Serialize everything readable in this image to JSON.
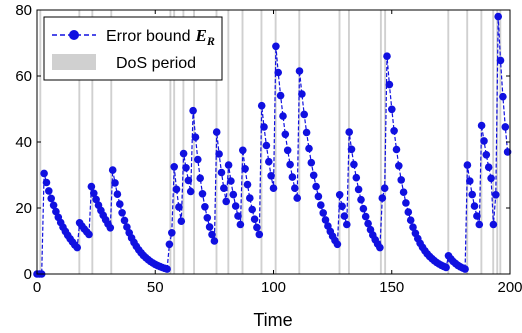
{
  "chart_data": {
    "type": "scatter",
    "title": "",
    "xlabel": "Time",
    "ylabel": "",
    "xlim": [
      0,
      200
    ],
    "ylim": [
      0,
      80
    ],
    "xticks": [
      "0",
      "50",
      "100",
      "150",
      "200"
    ],
    "yticks": [
      "0",
      "20",
      "40",
      "60",
      "80"
    ],
    "grid": false,
    "legend_position": "top-left",
    "legend": {
      "error_label": "Error bound",
      "error_symbol": "E",
      "error_subscript": "R",
      "dos_label": "DoS period"
    },
    "colors": {
      "series": "#1010e0",
      "dos": "#d0d0d0"
    },
    "dos_periods": [
      [
        1.0,
        1.8
      ],
      [
        17.5,
        18.3
      ],
      [
        23.0,
        23.8
      ],
      [
        31.0,
        31.8
      ],
      [
        56.0,
        56.8
      ],
      [
        57.6,
        58.4
      ],
      [
        61.5,
        62.3
      ],
      [
        66.0,
        66.8
      ],
      [
        75.5,
        76.3
      ],
      [
        80.5,
        81.3
      ],
      [
        86.5,
        87.3
      ],
      [
        94.5,
        95.3
      ],
      [
        100.5,
        101.3
      ],
      [
        110.5,
        111.3
      ],
      [
        127.5,
        128.3
      ],
      [
        131.5,
        132.3
      ],
      [
        145.0,
        145.8
      ],
      [
        146.8,
        147.6
      ],
      [
        173.5,
        174.3
      ],
      [
        181.5,
        182.3
      ],
      [
        187.5,
        188.3
      ],
      [
        192.5,
        193.3
      ],
      [
        194.2,
        195.0
      ],
      [
        195.5,
        196.3
      ]
    ],
    "segments": [
      {
        "x0": 0,
        "x1": 2,
        "y0": 0,
        "y1": 0
      },
      {
        "x0": 3,
        "x1": 17,
        "y0": 30.5,
        "y1": 8
      },
      {
        "x0": 18,
        "x1": 22,
        "y0": 15.5,
        "y1": 12
      },
      {
        "x0": 23,
        "x1": 31,
        "y0": 26.5,
        "y1": 14
      },
      {
        "x0": 32,
        "x1": 55,
        "y0": 31.5,
        "y1": 1.5
      },
      {
        "x0": 56,
        "x1": 57,
        "y0": 9,
        "y1": 12.5
      },
      {
        "x0": 58,
        "x1": 61,
        "y0": 32.5,
        "y1": 16
      },
      {
        "x0": 62,
        "x1": 65,
        "y0": 36.5,
        "y1": 25
      },
      {
        "x0": 66,
        "x1": 75,
        "y0": 49.5,
        "y1": 10
      },
      {
        "x0": 76,
        "x1": 80,
        "y0": 43,
        "y1": 22
      },
      {
        "x0": 81,
        "x1": 86,
        "y0": 33,
        "y1": 15
      },
      {
        "x0": 87,
        "x1": 94,
        "y0": 37.5,
        "y1": 12
      },
      {
        "x0": 95,
        "x1": 100,
        "y0": 51,
        "y1": 26
      },
      {
        "x0": 101,
        "x1": 110,
        "y0": 69,
        "y1": 23
      },
      {
        "x0": 111,
        "x1": 127,
        "y0": 61.5,
        "y1": 9
      },
      {
        "x0": 128,
        "x1": 131,
        "y0": 24,
        "y1": 15
      },
      {
        "x0": 132,
        "x1": 145,
        "y0": 43,
        "y1": 8
      },
      {
        "x0": 146,
        "x1": 147,
        "y0": 23,
        "y1": 26
      },
      {
        "x0": 148,
        "x1": 173,
        "y0": 66,
        "y1": 2
      },
      {
        "x0": 174,
        "x1": 181,
        "y0": 5.5,
        "y1": 1.5
      },
      {
        "x0": 182,
        "x1": 187,
        "y0": 33,
        "y1": 15
      },
      {
        "x0": 188,
        "x1": 192,
        "y0": 45,
        "y1": 29
      },
      {
        "x0": 193,
        "x1": 194,
        "y0": 15,
        "y1": 24
      },
      {
        "x0": 195,
        "x1": 199,
        "y0": 78,
        "y1": 37
      }
    ]
  }
}
